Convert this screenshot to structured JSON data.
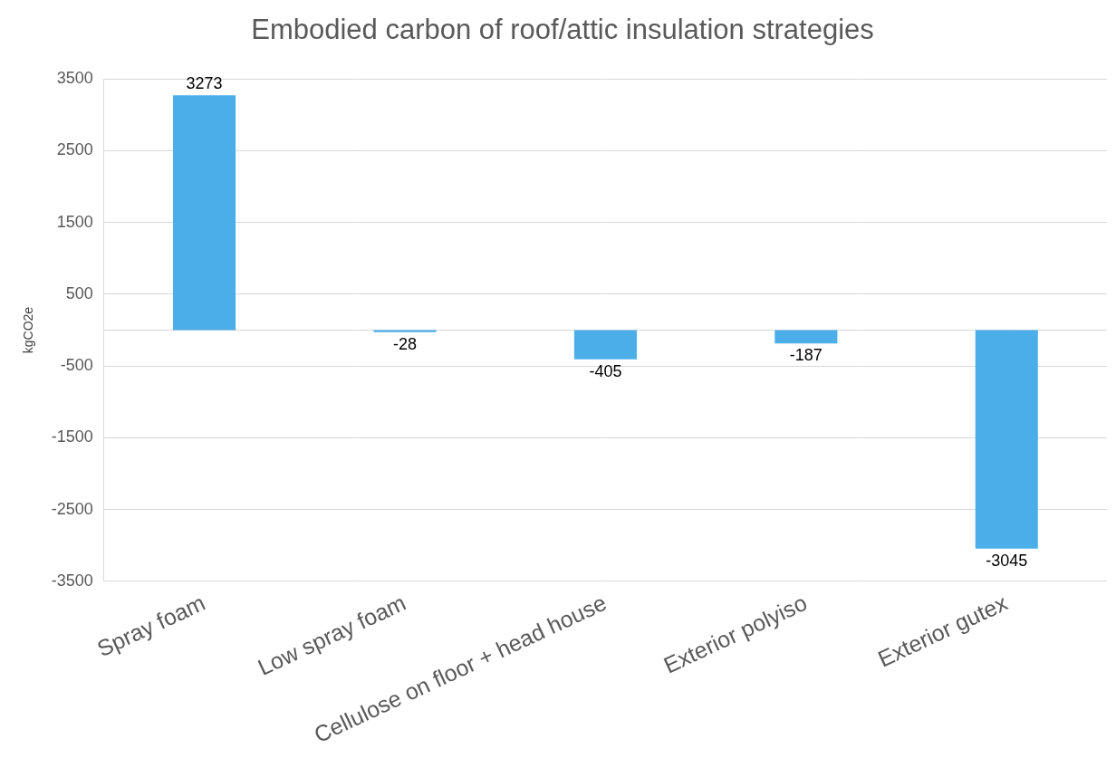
{
  "chart_data": {
    "type": "bar",
    "title": "Embodied carbon of roof/attic insulation strategies",
    "y_label": "kgCO2e",
    "categories": [
      "Spray foam",
      "Low spray foam",
      "Cellulose on floor + head house",
      "Exterior polyiso",
      "Exterior gutex"
    ],
    "values": [
      3273,
      -28,
      -405,
      -187,
      -3045
    ],
    "color": "#4baee8",
    "ylim": [
      -3500,
      3500
    ],
    "yticks": [
      -3500,
      -2500,
      -1500,
      -500,
      500,
      1500,
      2500,
      3500
    ],
    "grid": true,
    "data_labels": true
  }
}
